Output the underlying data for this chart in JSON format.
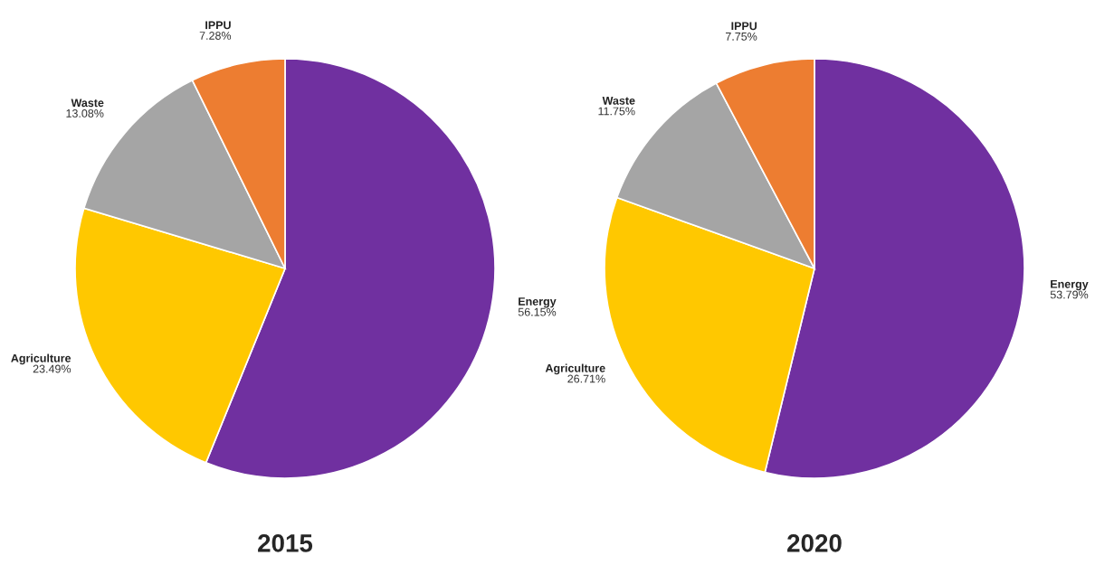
{
  "chart_data": [
    {
      "type": "pie",
      "title": "2015",
      "categories": [
        "Energy",
        "Agriculture",
        "Waste",
        "IPPU"
      ],
      "values": [
        56.15,
        23.49,
        13.08,
        7.28
      ],
      "value_labels": [
        "56.15%",
        "23.49%",
        "13.08%",
        "7.28%"
      ],
      "colors": [
        "#7030a0",
        "#ffc800",
        "#a5a5a5",
        "#ed7d31"
      ]
    },
    {
      "type": "pie",
      "title": "2020",
      "categories": [
        "Energy",
        "Agriculture",
        "Waste",
        "IPPU"
      ],
      "values": [
        53.79,
        26.71,
        11.75,
        7.75
      ],
      "value_labels": [
        "53.79%",
        "26.71%",
        "11.75%",
        "7.75%"
      ],
      "colors": [
        "#7030a0",
        "#ffc800",
        "#a5a5a5",
        "#ed7d31"
      ]
    }
  ]
}
